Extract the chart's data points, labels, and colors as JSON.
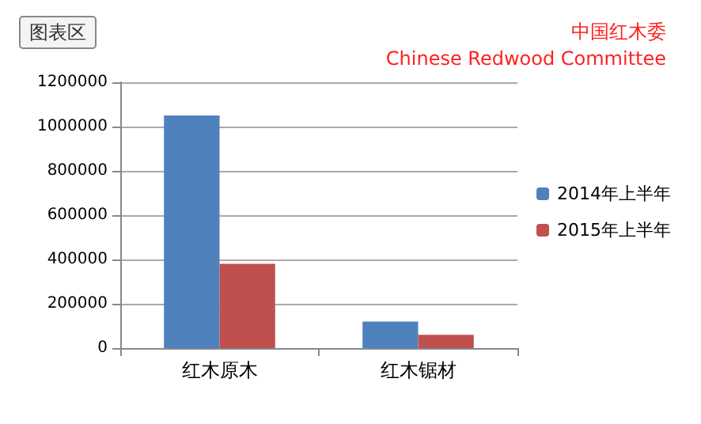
{
  "chart_data": {
    "type": "bar",
    "categories": [
      "红木原木",
      "红木锯材"
    ],
    "series": [
      {
        "name": "2014年上半年",
        "color": "#4f81bd",
        "values": [
          1050000,
          120000
        ]
      },
      {
        "name": "2015年上半年",
        "color": "#c0504d",
        "values": [
          380000,
          60000
        ]
      }
    ],
    "ylim": [
      0,
      1200000
    ],
    "yticks": [
      0,
      200000,
      400000,
      600000,
      800000,
      1000000,
      1200000
    ],
    "grid": "y",
    "legend": "right",
    "annotations": [
      "图表区",
      "中国红木委",
      "Chinese Redwood Committee"
    ]
  }
}
